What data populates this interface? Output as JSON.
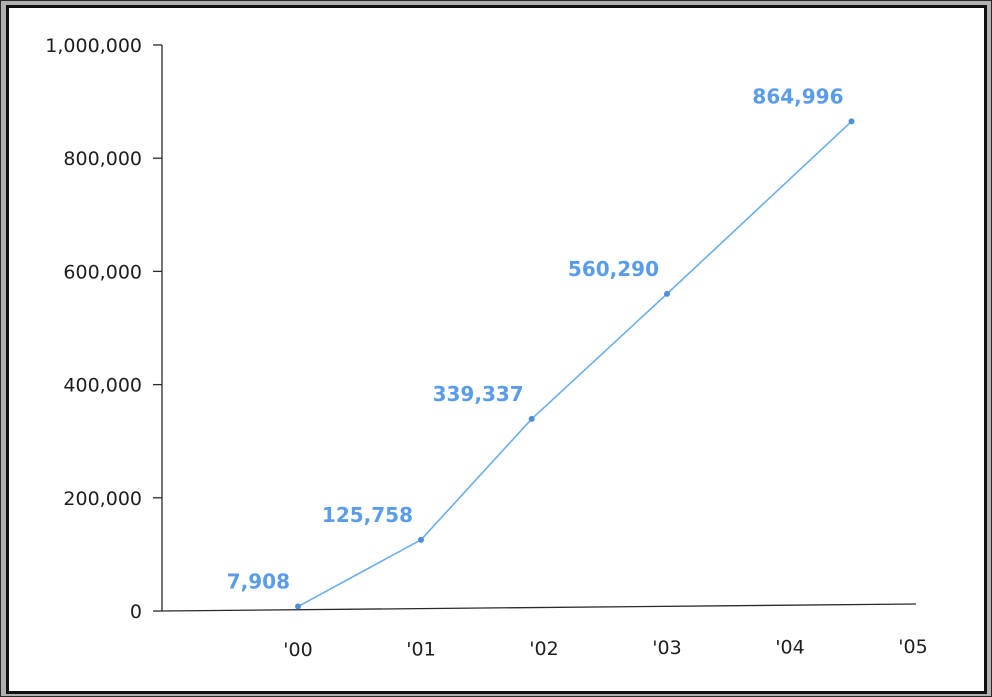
{
  "chart_data": {
    "type": "line",
    "title": "",
    "xlabel": "",
    "ylabel": "",
    "x_ticks": [
      "'00",
      "'01",
      "'02",
      "'03",
      "'04",
      "'05"
    ],
    "y_ticks": [
      "0",
      "200,000",
      "400,000",
      "600,000",
      "800,000",
      "1,000,000"
    ],
    "ylim": [
      0,
      1000000
    ],
    "grid": false,
    "series": [
      {
        "points": [
          {
            "x": 2000.0,
            "y": 7908,
            "label": "7,908"
          },
          {
            "x": 2001.0,
            "y": 125758,
            "label": "125,758"
          },
          {
            "x": 2001.9,
            "y": 339337,
            "label": "339,337"
          },
          {
            "x": 2003.0,
            "y": 560290,
            "label": "560,290"
          },
          {
            "x": 2004.5,
            "y": 864996,
            "label": "864,996"
          }
        ]
      }
    ],
    "colors": {
      "line": "#6aaef0",
      "label": "#5a9cec",
      "axis": "#2a2a2a",
      "marker": "#4f8fd8"
    }
  }
}
